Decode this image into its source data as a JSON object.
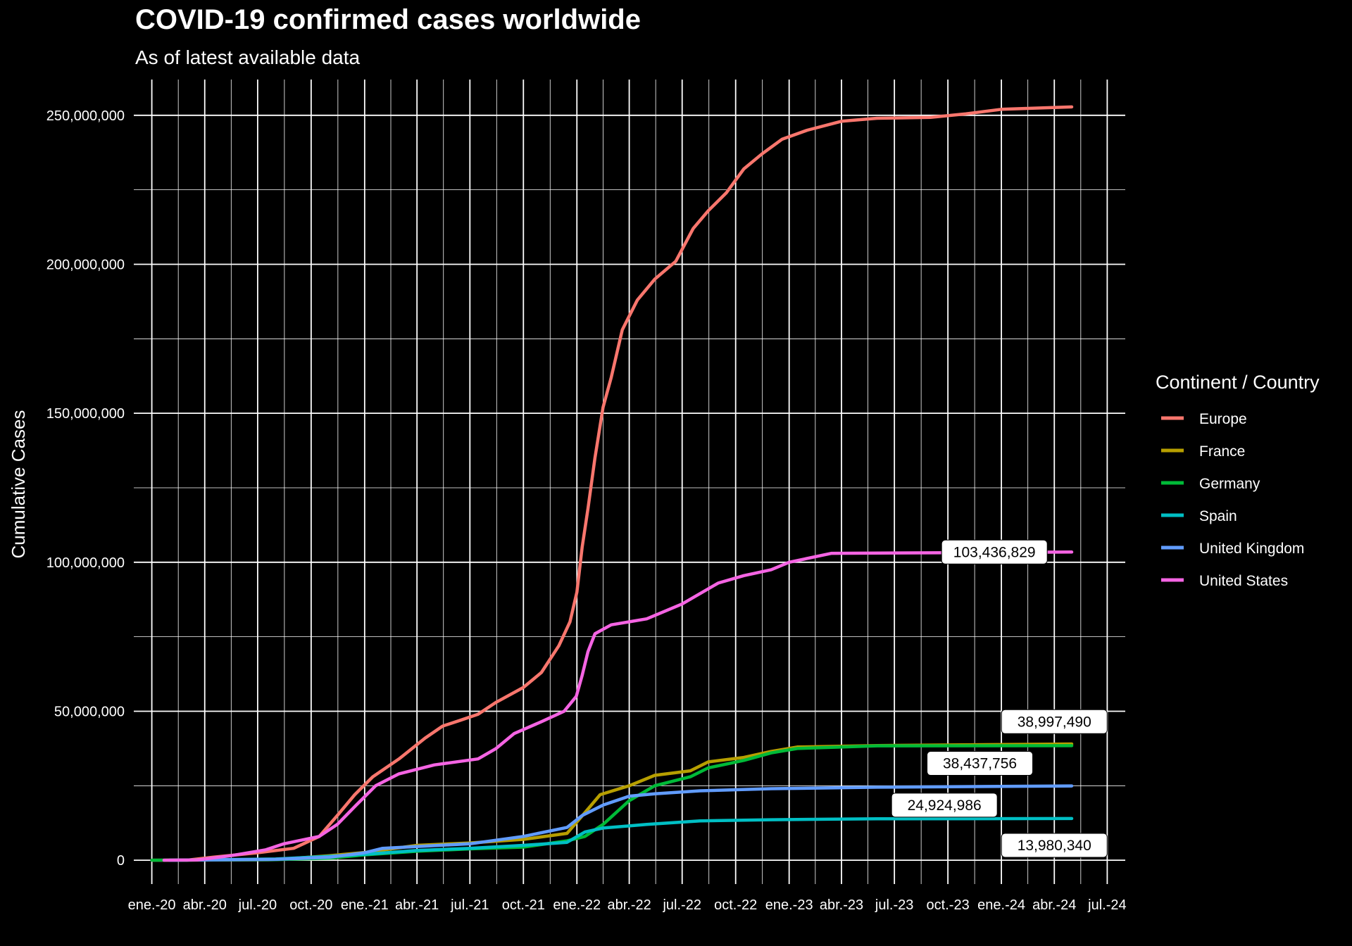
{
  "chart_data": {
    "type": "line",
    "title": "COVID-19 confirmed cases worldwide",
    "subtitle": "As of latest available data",
    "xlabel": "",
    "ylabel": "Cumulative Cases",
    "xlim": [
      "2019-12-01",
      "2024-08-01"
    ],
    "ylim": [
      -8000000,
      262000000
    ],
    "y_ticks": [
      {
        "value": 0,
        "label": "0"
      },
      {
        "value": 50000000,
        "label": "50,000,000"
      },
      {
        "value": 100000000,
        "label": "100,000,000"
      },
      {
        "value": 150000000,
        "label": "150,000,000"
      },
      {
        "value": 200000000,
        "label": "200,000,000"
      },
      {
        "value": 250000000,
        "label": "250,000,000"
      }
    ],
    "x_ticks": [
      {
        "date": "2020-01-01",
        "label": "ene.-20"
      },
      {
        "date": "2020-04-01",
        "label": "abr.-20"
      },
      {
        "date": "2020-07-01",
        "label": "jul.-20"
      },
      {
        "date": "2020-10-01",
        "label": "oct.-20"
      },
      {
        "date": "2021-01-01",
        "label": "ene.-21"
      },
      {
        "date": "2021-04-01",
        "label": "abr.-21"
      },
      {
        "date": "2021-07-01",
        "label": "jul.-21"
      },
      {
        "date": "2021-10-01",
        "label": "oct.-21"
      },
      {
        "date": "2022-01-01",
        "label": "ene.-22"
      },
      {
        "date": "2022-04-01",
        "label": "abr.-22"
      },
      {
        "date": "2022-07-01",
        "label": "jul.-22"
      },
      {
        "date": "2022-10-01",
        "label": "oct.-22"
      },
      {
        "date": "2023-01-01",
        "label": "ene.-23"
      },
      {
        "date": "2023-04-01",
        "label": "abr.-23"
      },
      {
        "date": "2023-07-01",
        "label": "jul.-23"
      },
      {
        "date": "2023-10-01",
        "label": "oct.-23"
      },
      {
        "date": "2024-01-01",
        "label": "ene.-24"
      },
      {
        "date": "2024-04-01",
        "label": "abr.-24"
      },
      {
        "date": "2024-07-01",
        "label": "jul.-24"
      }
    ],
    "grid": true,
    "legend": {
      "title": "Continent / Country",
      "placement": "right"
    },
    "series": [
      {
        "name": "Europe",
        "color": "#F8766D",
        "points": [
          [
            "2020-01-03",
            0
          ],
          [
            "2020-03-01",
            0
          ],
          [
            "2020-04-15",
            1000000
          ],
          [
            "2020-07-01",
            2500000
          ],
          [
            "2020-09-01",
            4000000
          ],
          [
            "2020-10-15",
            8000000
          ],
          [
            "2020-11-15",
            15000000
          ],
          [
            "2020-12-15",
            22000000
          ],
          [
            "2021-01-15",
            28000000
          ],
          [
            "2021-03-01",
            34000000
          ],
          [
            "2021-04-15",
            41000000
          ],
          [
            "2021-05-15",
            45000000
          ],
          [
            "2021-06-15",
            47000000
          ],
          [
            "2021-07-15",
            49000000
          ],
          [
            "2021-08-15",
            53000000
          ],
          [
            "2021-10-01",
            58000000
          ],
          [
            "2021-11-01",
            63000000
          ],
          [
            "2021-12-01",
            72000000
          ],
          [
            "2021-12-20",
            80000000
          ],
          [
            "2022-01-01",
            90000000
          ],
          [
            "2022-01-10",
            105000000
          ],
          [
            "2022-01-20",
            118000000
          ],
          [
            "2022-02-01",
            135000000
          ],
          [
            "2022-02-15",
            152000000
          ],
          [
            "2022-03-01",
            162000000
          ],
          [
            "2022-03-20",
            178000000
          ],
          [
            "2022-04-15",
            188000000
          ],
          [
            "2022-05-15",
            195000000
          ],
          [
            "2022-06-20",
            201000000
          ],
          [
            "2022-07-20",
            212000000
          ],
          [
            "2022-08-15",
            218000000
          ],
          [
            "2022-09-15",
            224000000
          ],
          [
            "2022-10-15",
            232000000
          ],
          [
            "2022-11-15",
            237000000
          ],
          [
            "2022-12-20",
            242000000
          ],
          [
            "2023-02-01",
            245000000
          ],
          [
            "2023-04-01",
            248000000
          ],
          [
            "2023-06-01",
            249000000
          ],
          [
            "2023-09-01",
            249300000
          ],
          [
            "2023-11-01",
            250500000
          ],
          [
            "2024-01-01",
            252000000
          ],
          [
            "2024-05-01",
            252800000
          ]
        ]
      },
      {
        "name": "France",
        "color": "#B79F00",
        "points": [
          [
            "2020-01-24",
            0
          ],
          [
            "2020-08-01",
            200000
          ],
          [
            "2020-11-01",
            1500000
          ],
          [
            "2021-01-01",
            2600000
          ],
          [
            "2021-04-01",
            5000000
          ],
          [
            "2021-07-01",
            5800000
          ],
          [
            "2021-10-01",
            7000000
          ],
          [
            "2021-12-15",
            9000000
          ],
          [
            "2022-01-15",
            16000000
          ],
          [
            "2022-02-10",
            22000000
          ],
          [
            "2022-04-01",
            25000000
          ],
          [
            "2022-05-15",
            28500000
          ],
          [
            "2022-07-15",
            30000000
          ],
          [
            "2022-08-15",
            33000000
          ],
          [
            "2022-10-15",
            34500000
          ],
          [
            "2022-12-01",
            36500000
          ],
          [
            "2023-01-15",
            38000000
          ],
          [
            "2023-06-01",
            38500000
          ],
          [
            "2024-05-01",
            38997490
          ]
        ]
      },
      {
        "name": "Germany",
        "color": "#00BA38",
        "points": [
          [
            "2020-01-01",
            0
          ],
          [
            "2020-08-01",
            200000
          ],
          [
            "2020-11-01",
            700000
          ],
          [
            "2021-01-01",
            1800000
          ],
          [
            "2021-04-01",
            3000000
          ],
          [
            "2021-07-01",
            3800000
          ],
          [
            "2021-10-01",
            4400000
          ],
          [
            "2021-12-15",
            6500000
          ],
          [
            "2022-01-15",
            8000000
          ],
          [
            "2022-02-15",
            12000000
          ],
          [
            "2022-04-01",
            20000000
          ],
          [
            "2022-05-15",
            25000000
          ],
          [
            "2022-07-15",
            28000000
          ],
          [
            "2022-08-15",
            31000000
          ],
          [
            "2022-10-15",
            33500000
          ],
          [
            "2022-12-01",
            36000000
          ],
          [
            "2023-01-15",
            37500000
          ],
          [
            "2023-06-01",
            38400000
          ],
          [
            "2024-05-01",
            38437756
          ]
        ]
      },
      {
        "name": "Spain",
        "color": "#00BFC4",
        "points": [
          [
            "2020-02-01",
            0
          ],
          [
            "2020-08-01",
            400000
          ],
          [
            "2020-11-01",
            1300000
          ],
          [
            "2021-01-01",
            2000000
          ],
          [
            "2021-04-01",
            3300000
          ],
          [
            "2021-07-01",
            4000000
          ],
          [
            "2021-10-01",
            5000000
          ],
          [
            "2021-12-15",
            6000000
          ],
          [
            "2022-01-15",
            9500000
          ],
          [
            "2022-02-15",
            10800000
          ],
          [
            "2022-05-01",
            12000000
          ],
          [
            "2022-08-01",
            13200000
          ],
          [
            "2022-12-01",
            13600000
          ],
          [
            "2023-06-01",
            13900000
          ],
          [
            "2024-05-01",
            13980340
          ]
        ]
      },
      {
        "name": "United Kingdom",
        "color": "#619CFF",
        "points": [
          [
            "2020-01-31",
            0
          ],
          [
            "2020-08-01",
            300000
          ],
          [
            "2020-11-01",
            1000000
          ],
          [
            "2021-01-01",
            2500000
          ],
          [
            "2021-02-01",
            4000000
          ],
          [
            "2021-07-01",
            5500000
          ],
          [
            "2021-10-01",
            8000000
          ],
          [
            "2021-12-15",
            11000000
          ],
          [
            "2022-01-10",
            15000000
          ],
          [
            "2022-02-15",
            18500000
          ],
          [
            "2022-04-01",
            21500000
          ],
          [
            "2022-05-15",
            22300000
          ],
          [
            "2022-08-01",
            23300000
          ],
          [
            "2022-12-01",
            24000000
          ],
          [
            "2023-06-01",
            24500000
          ],
          [
            "2024-05-01",
            24924986
          ]
        ]
      },
      {
        "name": "United States",
        "color": "#F564E3",
        "points": [
          [
            "2020-01-22",
            0
          ],
          [
            "2020-03-20",
            100000
          ],
          [
            "2020-05-15",
            1500000
          ],
          [
            "2020-07-15",
            3500000
          ],
          [
            "2020-08-15",
            5500000
          ],
          [
            "2020-10-15",
            8000000
          ],
          [
            "2020-11-15",
            12000000
          ],
          [
            "2020-12-15",
            18000000
          ],
          [
            "2021-01-20",
            25000000
          ],
          [
            "2021-03-01",
            29000000
          ],
          [
            "2021-05-01",
            32000000
          ],
          [
            "2021-07-15",
            34000000
          ],
          [
            "2021-08-15",
            37500000
          ],
          [
            "2021-09-15",
            42500000
          ],
          [
            "2021-11-01",
            46500000
          ],
          [
            "2021-12-10",
            50000000
          ],
          [
            "2021-12-31",
            55000000
          ],
          [
            "2022-01-10",
            62000000
          ],
          [
            "2022-01-20",
            70000000
          ],
          [
            "2022-02-01",
            76000000
          ],
          [
            "2022-03-01",
            79000000
          ],
          [
            "2022-05-01",
            81000000
          ],
          [
            "2022-07-01",
            86000000
          ],
          [
            "2022-09-01",
            93000000
          ],
          [
            "2022-10-15",
            95500000
          ],
          [
            "2022-12-01",
            97500000
          ],
          [
            "2023-01-01",
            100000000
          ],
          [
            "2023-03-15",
            103000000
          ],
          [
            "2024-05-01",
            103436829
          ]
        ]
      }
    ],
    "end_labels": [
      {
        "text": "103,436,829",
        "date": "2023-12-20",
        "y": 103436829
      },
      {
        "text": "38,997,490",
        "date": "2024-04-01",
        "y": 46500000
      },
      {
        "text": "38,437,756",
        "date": "2023-11-25",
        "y": 32500000
      },
      {
        "text": "24,924,986",
        "date": "2023-09-25",
        "y": 18500000
      },
      {
        "text": "13,980,340",
        "date": "2024-04-01",
        "y": 5000000
      }
    ]
  }
}
